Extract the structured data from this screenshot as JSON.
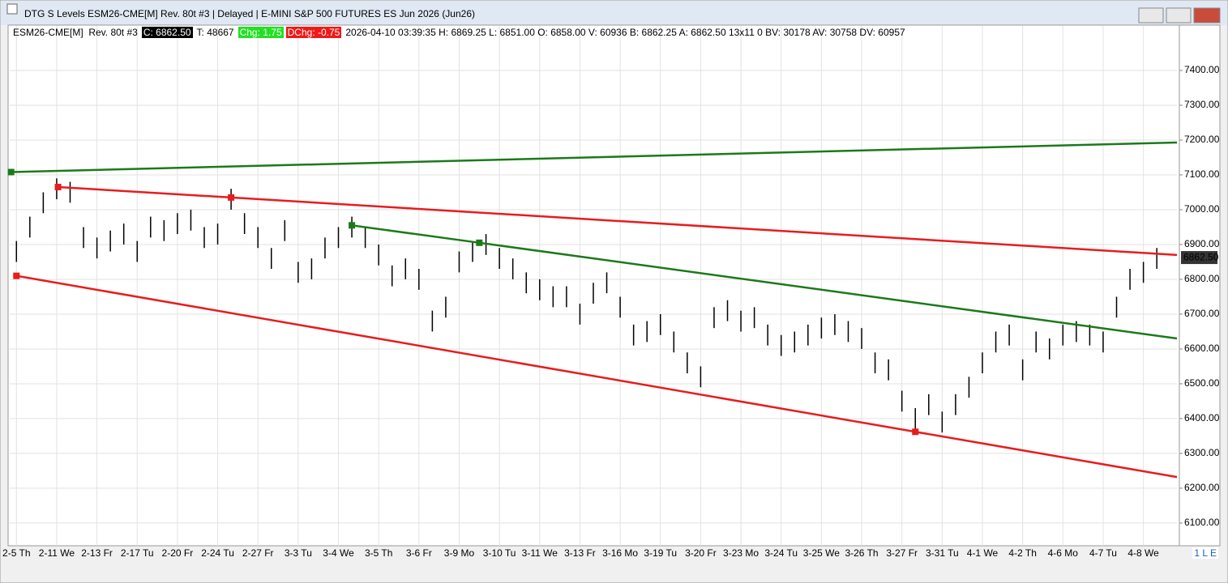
{
  "window": {
    "title": "DTG S Levels ESM26-CME[M]  Rev. 80t #3 | Delayed | E-MINI S&P 500 FUTURES ES Jun 2026 (Jun26)",
    "info": {
      "symbol": "ESM26-CME[M]  Rev. 80t #3",
      "close": "C: 6862.50",
      "ticks": "T: 48667",
      "change": "Chg: 1.75",
      "day_change": "DChg: -0.75",
      "details": "2026-04-10 03:39:35 H: 6869.25 L: 6851.00 O: 6858.00 V: 60936 B: 6862.25 A: 6862.50 13x11 0 BV: 30178 AV: 30758 DV: 60957"
    },
    "status": "1 L E"
  },
  "chart_data": {
    "type": "ohlc",
    "color": "#000000",
    "categories": [
      "2-5 Th",
      null,
      null,
      "2-11 We",
      null,
      null,
      "2-13 Fr",
      null,
      null,
      "2-17 Tu",
      null,
      null,
      "2-20 Fr",
      null,
      null,
      "2-24 Tu",
      null,
      null,
      "2-27 Fr",
      null,
      null,
      "3-3 Tu",
      null,
      null,
      "3-4 We",
      null,
      null,
      "3-5 Th",
      null,
      null,
      "3-6 Fr",
      null,
      null,
      "3-9 Mo",
      null,
      null,
      "3-10 Tu",
      null,
      null,
      "3-11 We",
      null,
      null,
      "3-13 Fr",
      null,
      null,
      "3-16 Mo",
      null,
      null,
      "3-19 Tu",
      null,
      null,
      "3-20 Fr",
      null,
      null,
      "3-23 Mo",
      null,
      null,
      "3-24 Tu",
      null,
      null,
      "3-25 We",
      null,
      null,
      "3-26 Th",
      null,
      null,
      "3-27 Fr",
      null,
      null,
      "3-31 Tu",
      null,
      null,
      "4-1 We",
      null,
      null,
      "4-2 Th",
      null,
      null,
      "4-6 Mo",
      null,
      null,
      "4-7 Tu",
      null,
      null,
      "4-8 We",
      null,
      null
    ],
    "highs": [
      6910,
      6980,
      7050,
      7090,
      7080,
      6950,
      6920,
      6940,
      6960,
      6910,
      6980,
      6970,
      6990,
      7000,
      6950,
      6960,
      7060,
      6990,
      6950,
      6890,
      6970,
      6850,
      6860,
      6920,
      6950,
      6980,
      6950,
      6900,
      6840,
      6860,
      6830,
      6710,
      6750,
      6880,
      6910,
      6930,
      6890,
      6860,
      6820,
      6800,
      6780,
      6780,
      6730,
      6790,
      6820,
      6750,
      6670,
      6680,
      6700,
      6650,
      6590,
      6550,
      6720,
      6740,
      6710,
      6720,
      6670,
      6640,
      6650,
      6670,
      6690,
      6700,
      6680,
      6660,
      6590,
      6570,
      6480,
      6430,
      6470,
      6420,
      6470,
      6520,
      6590,
      6650,
      6670,
      6570,
      6650,
      6630,
      6670,
      6680,
      6670,
      6650,
      6750,
      6830,
      6850,
      6890,
      null
    ],
    "lows": [
      6850,
      6920,
      6990,
      7030,
      7020,
      6890,
      6860,
      6880,
      6900,
      6850,
      6920,
      6910,
      6930,
      6940,
      6890,
      6900,
      7000,
      6930,
      6890,
      6830,
      6910,
      6790,
      6800,
      6860,
      6890,
      6920,
      6890,
      6840,
      6780,
      6800,
      6770,
      6650,
      6690,
      6820,
      6850,
      6870,
      6830,
      6800,
      6760,
      6740,
      6720,
      6720,
      6670,
      6730,
      6760,
      6690,
      6610,
      6620,
      6640,
      6590,
      6530,
      6490,
      6660,
      6680,
      6650,
      6660,
      6610,
      6580,
      6590,
      6610,
      6630,
      6640,
      6620,
      6600,
      6530,
      6510,
      6420,
      6370,
      6410,
      6360,
      6410,
      6460,
      6530,
      6590,
      6610,
      6510,
      6590,
      6570,
      6610,
      6620,
      6610,
      6590,
      6690,
      6770,
      6790,
      6830,
      null
    ],
    "trendlines": [
      {
        "color": "#1a7a1a",
        "x": [
          -0.4,
          86.5
        ],
        "values": [
          7108,
          7193
        ]
      },
      {
        "color": "#e81c1c",
        "x": [
          3.1,
          16,
          86.5
        ],
        "values": [
          7065,
          7035,
          6870
        ]
      },
      {
        "color": "#e81c1c",
        "x": [
          0,
          67,
          86.5
        ],
        "values": [
          6810,
          6362,
          6232
        ]
      },
      {
        "color": "#1a7a1a",
        "x": [
          25,
          34.5,
          86.5
        ],
        "values": [
          6955,
          6905,
          6630
        ]
      }
    ],
    "last_price": 6862.5,
    "last_price_label": "6862.50",
    "ylim": [
      6044,
      7486
    ],
    "yticks": [
      {
        "value": 6100,
        "label": "6100.00"
      },
      {
        "value": 6200,
        "label": "6200.00"
      },
      {
        "value": 6300,
        "label": "6300.00"
      },
      {
        "value": 6400,
        "label": "6400.00"
      },
      {
        "value": 6500,
        "label": "6500.00"
      },
      {
        "value": 6600,
        "label": "6600.00"
      },
      {
        "value": 6700,
        "label": "6700.00"
      },
      {
        "value": 6800,
        "label": "6800.00"
      },
      {
        "value": 6900,
        "label": "6900.00"
      },
      {
        "value": 7000,
        "label": "7000.00"
      },
      {
        "value": 7100,
        "label": "7100.00"
      },
      {
        "value": 7200,
        "label": "7200.00"
      },
      {
        "value": 7300,
        "label": "7300.00"
      },
      {
        "value": 7400,
        "label": "7400.00"
      }
    ],
    "grid": true
  }
}
